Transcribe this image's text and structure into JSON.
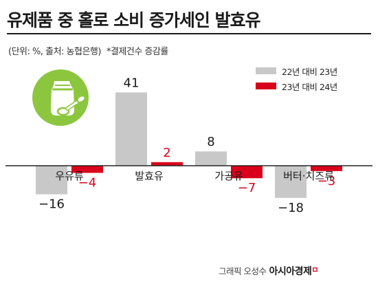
{
  "header": {
    "title": "유제품 중 홀로 소비 증가세인 발효유",
    "subtitle": "(단위: %, 출처: 농협은행)",
    "note": "*결제건수 증감률"
  },
  "colors": {
    "series_prev": "#c8c8c8",
    "series_curr": "#d9001b",
    "axis": "#222222",
    "label_prev": "#1a1a1a",
    "label_curr": "#d9001b",
    "logo_bg": "#8cc63f"
  },
  "logo": {
    "icon": "yogurt-jar-icon"
  },
  "chart_data": {
    "type": "bar",
    "categories": [
      "우유류",
      "발효유",
      "가공유",
      "버터·치즈류"
    ],
    "series": [
      {
        "name": "22년 대비 23년",
        "values": [
          -16,
          41,
          8,
          -18
        ],
        "labels": [
          "−16",
          "41",
          "8",
          "−18"
        ]
      },
      {
        "name": "23년 대비 24년",
        "values": [
          -4,
          2,
          -7,
          -3
        ],
        "labels": [
          "−4",
          "2",
          "−7",
          "−3"
        ]
      }
    ],
    "ylim": [
      -25,
      45
    ],
    "legend": "top-right",
    "grid": false
  },
  "credit": {
    "prefix": "그래픽 오성수",
    "brand": "아시아경제",
    "mark": "ㅁ"
  }
}
